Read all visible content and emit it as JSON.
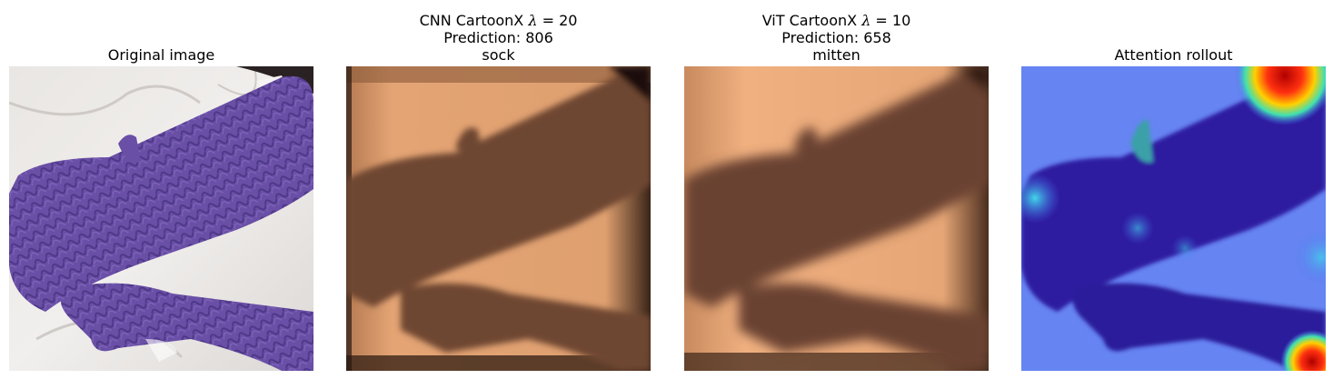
{
  "panels": [
    {
      "id": "original",
      "title_lines": [
        "Original image"
      ],
      "image": "purple knitted cable mittens on white fabric"
    },
    {
      "id": "cnn-cartoonx",
      "title_parts": [
        "CNN CartoonX ",
        "λ",
        " = 20"
      ],
      "title_lines": [
        "Prediction: 806",
        "sock"
      ],
      "image": "CNN CartoonX explanation mask (copper colormap)"
    },
    {
      "id": "vit-cartoonx",
      "title_parts": [
        "ViT CartoonX ",
        "λ",
        " = 10"
      ],
      "title_lines": [
        "Prediction: 658",
        "mitten"
      ],
      "image": "ViT CartoonX explanation mask (copper colormap)"
    },
    {
      "id": "attention-rollout",
      "title_lines": [
        "Attention rollout"
      ],
      "image": "attention rollout heatmap (jet colormap) over mittens"
    }
  ],
  "colors": {
    "background": "#ffffff",
    "mitten_purple": "#6a4fa6",
    "fabric_white": "#ebe8e6",
    "copper_light": "#d99a6c",
    "copper_dark": "#5a3a26",
    "rollout_blue": "#4a6ff0",
    "rollout_deep": "#2a1d9a",
    "rollout_hot": "#c01010"
  }
}
